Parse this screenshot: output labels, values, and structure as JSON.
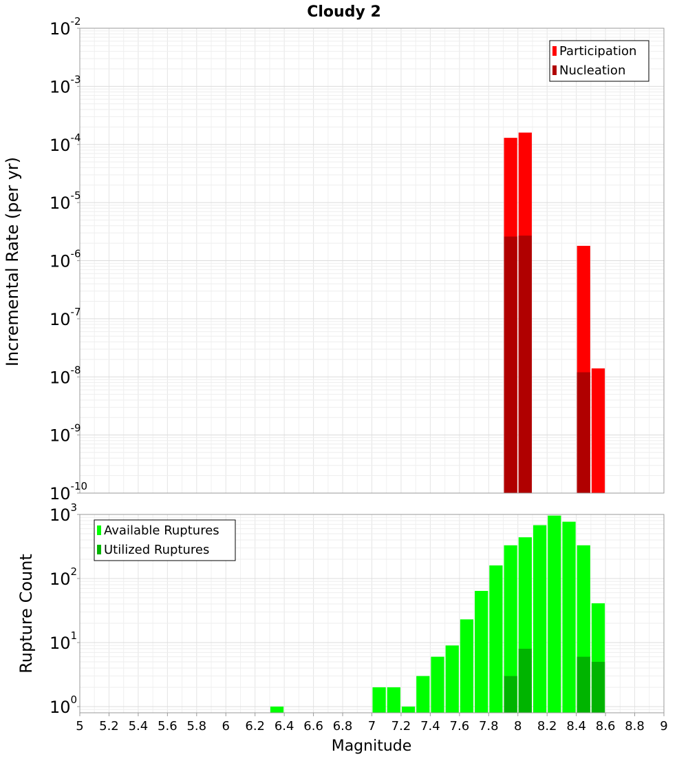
{
  "chart_data": [
    {
      "type": "bar",
      "title": "Cloudy 2",
      "ylabel": "Incremental Rate (per yr)",
      "xlabel": "",
      "yscale": "log",
      "ylim": [
        1e-10,
        0.01
      ],
      "xlim": [
        5,
        9
      ],
      "grid": true,
      "legend_position": "top-right",
      "bin_width": 0.1,
      "colors": {
        "Participation": "#ff0000",
        "Nucleation": "#b00000"
      },
      "series": [
        {
          "name": "Participation",
          "points": [
            {
              "x": 7.95,
              "y": 0.00013
            },
            {
              "x": 8.05,
              "y": 0.00016
            },
            {
              "x": 8.45,
              "y": 1.8e-06
            },
            {
              "x": 8.55,
              "y": 1.4e-08
            }
          ]
        },
        {
          "name": "Nucleation",
          "points": [
            {
              "x": 7.95,
              "y": 2.6e-06
            },
            {
              "x": 8.05,
              "y": 2.7e-06
            },
            {
              "x": 8.45,
              "y": 1.2e-08
            },
            {
              "x": 8.55,
              "y": 1e-10
            }
          ]
        }
      ]
    },
    {
      "type": "bar",
      "ylabel": "Rupture Count",
      "xlabel": "Magnitude",
      "yscale": "log",
      "ylim": [
        0.8,
        1000
      ],
      "xlim": [
        5,
        9
      ],
      "grid": true,
      "legend_position": "top-left",
      "bin_width": 0.1,
      "x_ticks": [
        5,
        5.2,
        5.4,
        5.6,
        5.8,
        6,
        6.2,
        6.4,
        6.6,
        6.8,
        7,
        7.2,
        7.4,
        7.6,
        7.8,
        8,
        8.2,
        8.4,
        8.6,
        8.8,
        9
      ],
      "x_tick_labels": [
        "5",
        "5.2",
        "5.4",
        "5.6",
        "5.8",
        "6",
        "6.2",
        "6.4",
        "6.6",
        "6.8",
        "7",
        "7.2",
        "7.4",
        "7.6",
        "7.8",
        "8",
        "8.2",
        "8.4",
        "8.6",
        "8.8",
        "9"
      ],
      "colors": {
        "Available Ruptures": "#00ff00",
        "Utilized Ruptures": "#00b400"
      },
      "series": [
        {
          "name": "Available Ruptures",
          "points": [
            {
              "x": 6.35,
              "y": 1
            },
            {
              "x": 7.05,
              "y": 2
            },
            {
              "x": 7.15,
              "y": 2
            },
            {
              "x": 7.25,
              "y": 1
            },
            {
              "x": 7.35,
              "y": 3
            },
            {
              "x": 7.45,
              "y": 6
            },
            {
              "x": 7.55,
              "y": 9
            },
            {
              "x": 7.65,
              "y": 23
            },
            {
              "x": 7.75,
              "y": 64
            },
            {
              "x": 7.85,
              "y": 160
            },
            {
              "x": 7.95,
              "y": 330
            },
            {
              "x": 8.05,
              "y": 440
            },
            {
              "x": 8.15,
              "y": 680
            },
            {
              "x": 8.25,
              "y": 960
            },
            {
              "x": 8.35,
              "y": 770
            },
            {
              "x": 8.45,
              "y": 330
            },
            {
              "x": 8.55,
              "y": 41
            }
          ]
        },
        {
          "name": "Utilized Ruptures",
          "points": [
            {
              "x": 7.95,
              "y": 3
            },
            {
              "x": 8.05,
              "y": 8
            },
            {
              "x": 8.45,
              "y": 6
            },
            {
              "x": 8.55,
              "y": 5
            }
          ]
        }
      ]
    }
  ]
}
